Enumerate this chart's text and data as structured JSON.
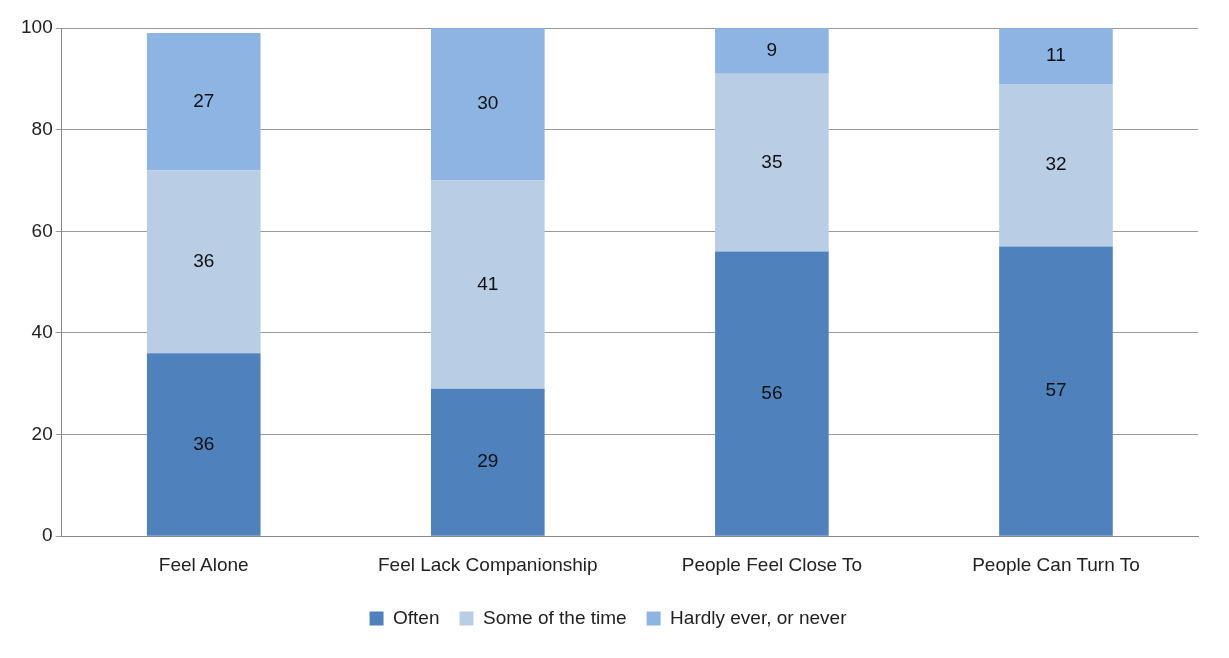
{
  "chart_data": {
    "type": "bar",
    "stacked": true,
    "categories": [
      "Feel Alone",
      "Feel Lack Companionship",
      "People Feel Close To",
      "People Can Turn To"
    ],
    "series": [
      {
        "name": "Often",
        "color": "#4f81bd",
        "values": [
          36,
          29,
          56,
          57
        ]
      },
      {
        "name": "Some of the time",
        "color": "#b9cde5",
        "values": [
          36,
          41,
          35,
          32
        ]
      },
      {
        "name": "Hardly ever, or never",
        "color": "#8eb4e3",
        "values": [
          27,
          30,
          9,
          11
        ]
      }
    ],
    "ylim": [
      0,
      100
    ],
    "yticks": [
      0,
      20,
      40,
      60,
      80,
      100
    ],
    "grid": "y",
    "legend": "bottom",
    "data_labels": true
  }
}
